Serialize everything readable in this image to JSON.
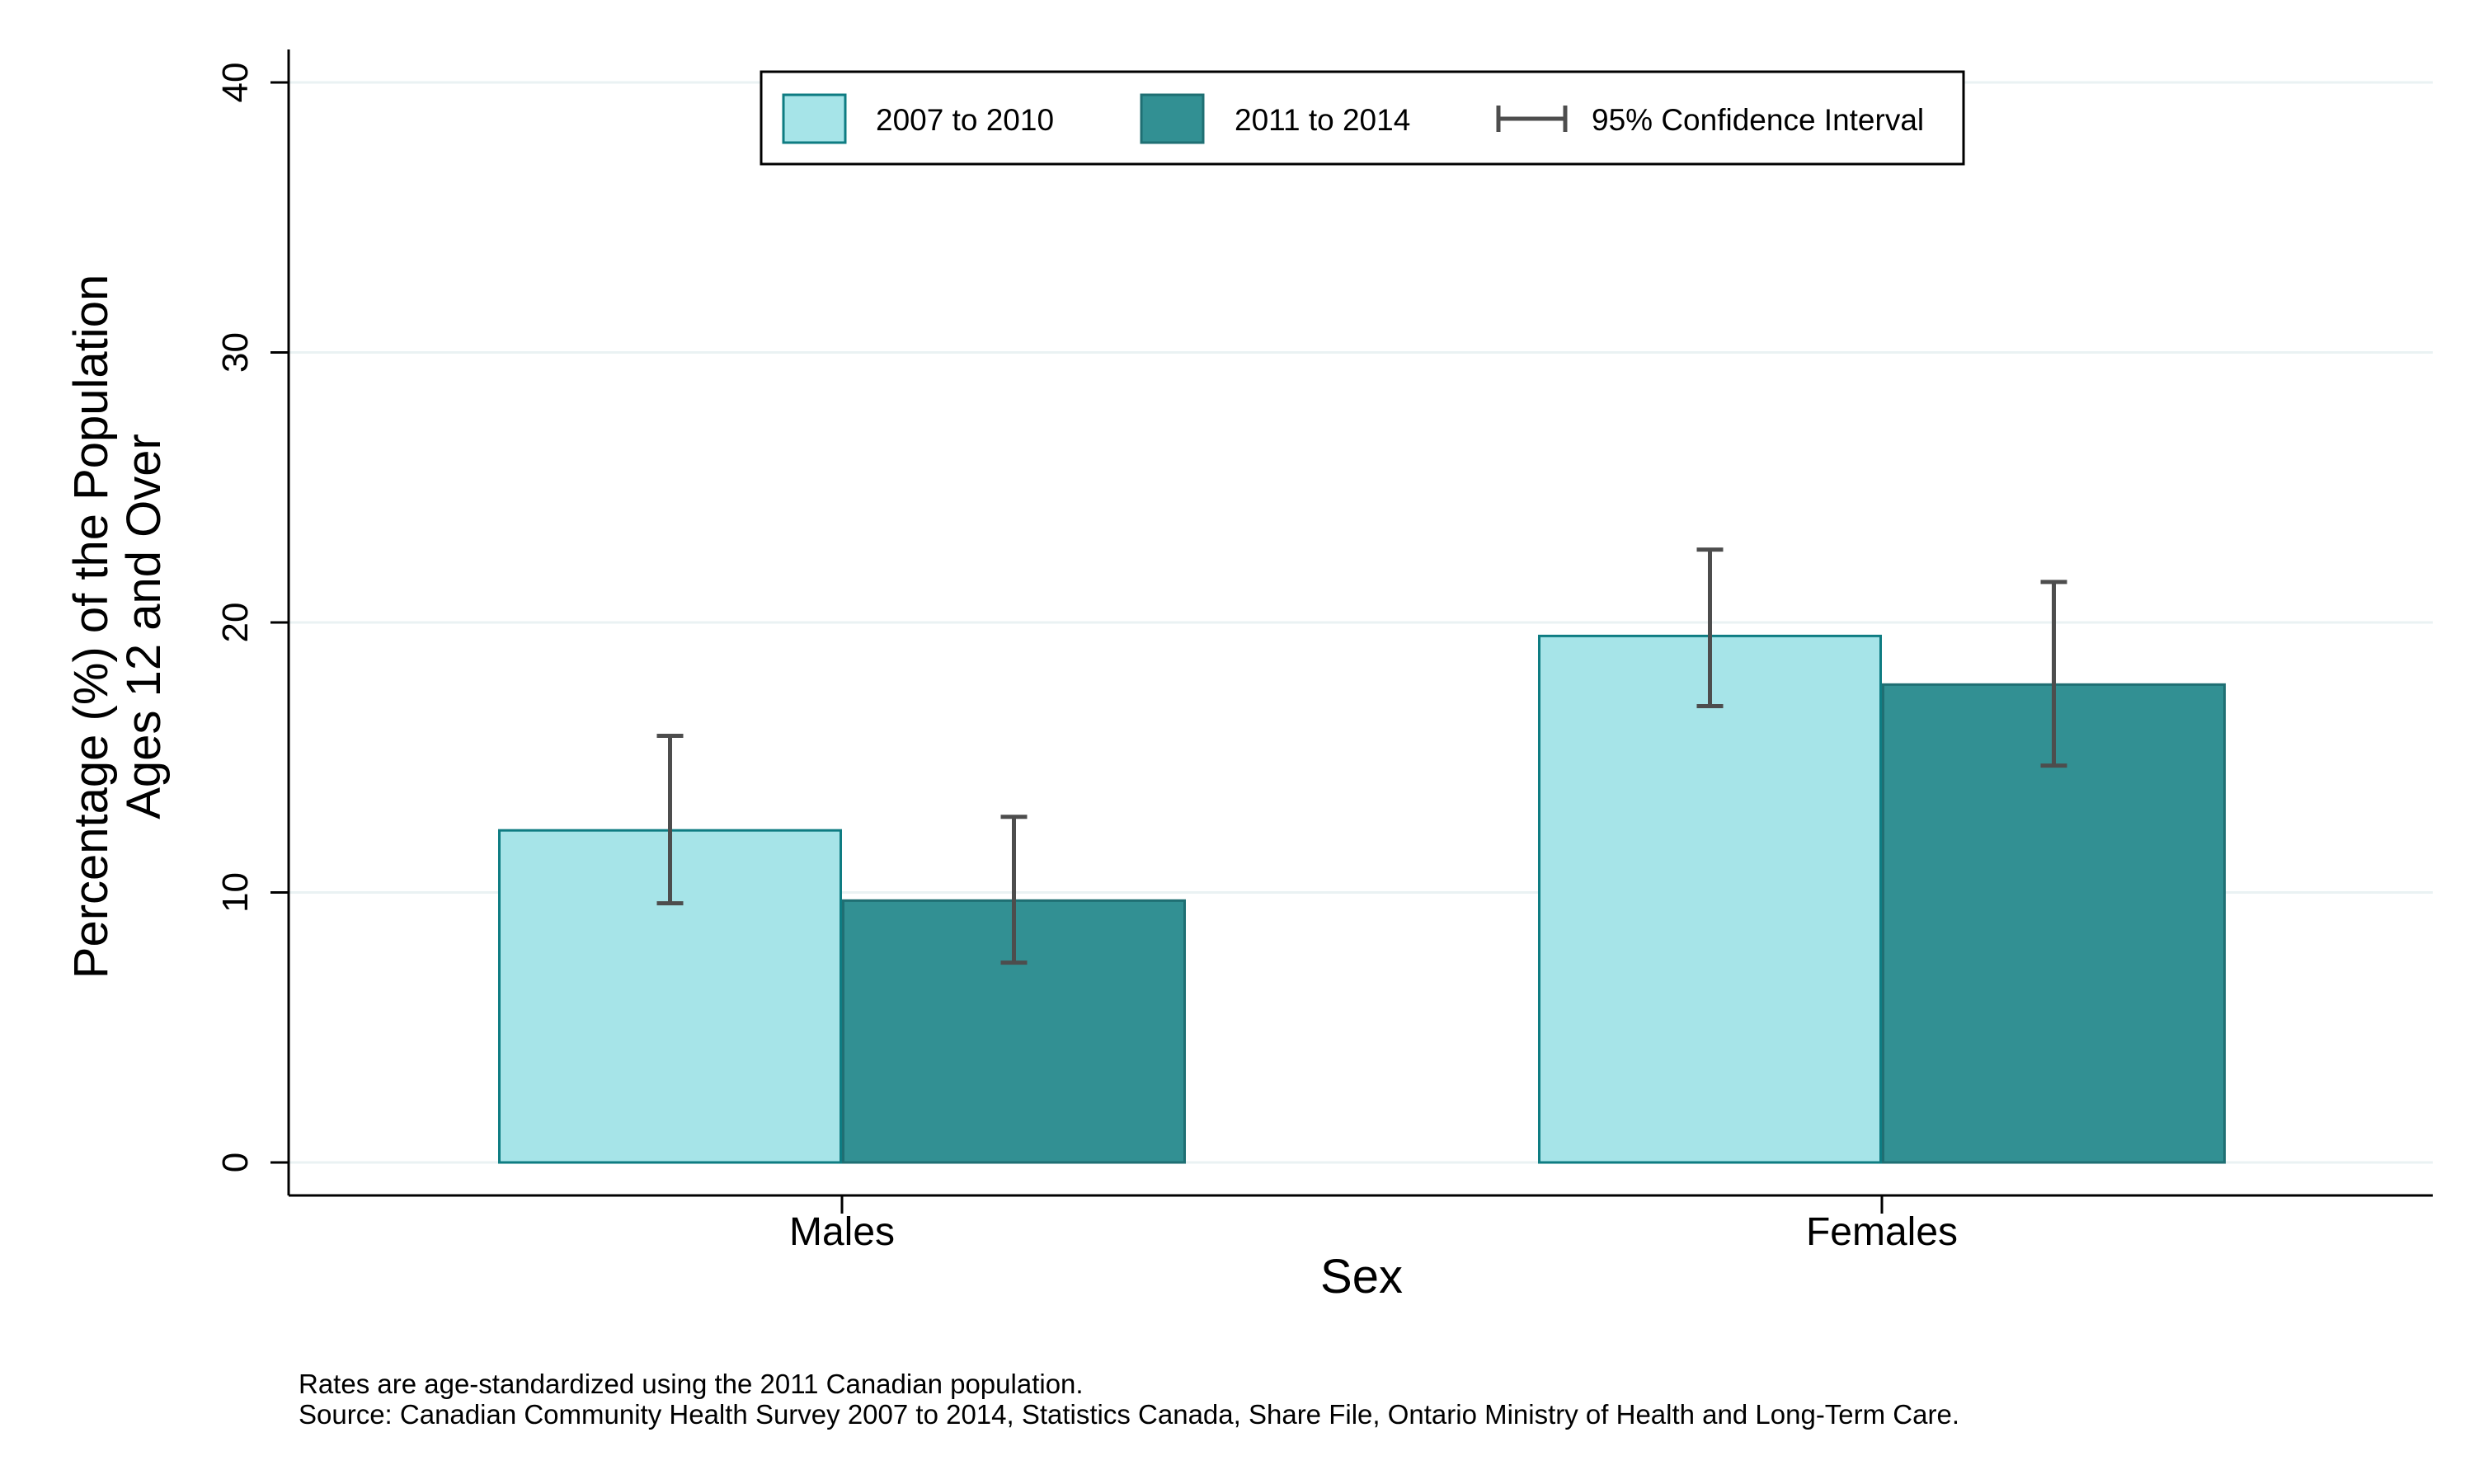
{
  "chart_data": {
    "type": "bar",
    "categories": [
      "Males",
      "Females"
    ],
    "series": [
      {
        "name": "2007 to 2010",
        "color": "#a6e4e8",
        "edge_color": "#0e7c82",
        "values": [
          12.3,
          19.5
        ],
        "ci_low": [
          9.6,
          16.9
        ],
        "ci_high": [
          15.8,
          22.7
        ]
      },
      {
        "name": "2011 to 2014",
        "color": "#329093",
        "edge_color": "#1f6f73",
        "values": [
          9.7,
          17.7
        ],
        "ci_low": [
          7.4,
          14.7
        ],
        "ci_high": [
          12.8,
          21.5
        ]
      }
    ],
    "ylim": [
      0,
      40
    ],
    "yticks": [
      0,
      10,
      20,
      30,
      40
    ],
    "ytick_labels": [
      "0",
      "10",
      "20",
      "30",
      "40"
    ],
    "xlabel": "Sex",
    "ylabel_lines": [
      "Percentage (%) of the Population",
      "Ages 12 and Over"
    ],
    "grid": true,
    "legend": {
      "placement": "top-center",
      "ci_label": "95% Confidence Interval"
    },
    "ci_color": "#4d4d4d",
    "notes": [
      "Rates are age-standardized using the 2011 Canadian population.",
      "Source: Canadian Community Health Survey 2007 to 2014, Statistics Canada, Share File, Ontario Ministry of Health and Long-Term Care."
    ]
  }
}
